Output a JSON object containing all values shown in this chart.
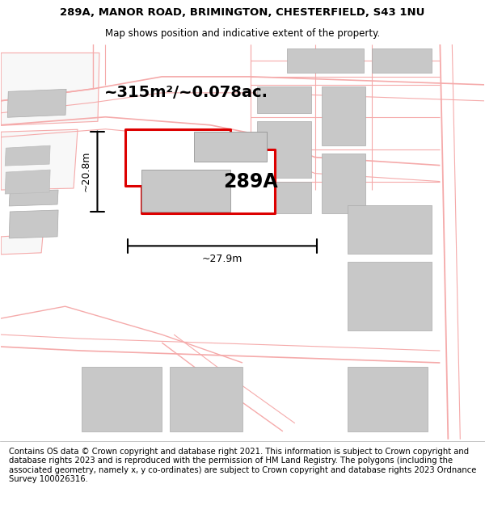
{
  "title_line1": "289A, MANOR ROAD, BRIMINGTON, CHESTERFIELD, S43 1NU",
  "title_line2": "Map shows position and indicative extent of the property.",
  "footer_text": "Contains OS data © Crown copyright and database right 2021. This information is subject to Crown copyright and database rights 2023 and is reproduced with the permission of HM Land Registry. The polygons (including the associated geometry, namely x, y co-ordinates) are subject to Crown copyright and database rights 2023 Ordnance Survey 100026316.",
  "area_label": "~315m²/~0.078ac.",
  "property_label": "289A",
  "dim_width": "~27.9m",
  "dim_height": "~20.8m",
  "title_fontsize": 9.5,
  "subtitle_fontsize": 8.5,
  "footer_fontsize": 7.2,
  "red_color": "#dd0000",
  "pink_color": "#f5aaaa",
  "gray_building": "#c8c8c8",
  "map_bg": "#ffffff"
}
